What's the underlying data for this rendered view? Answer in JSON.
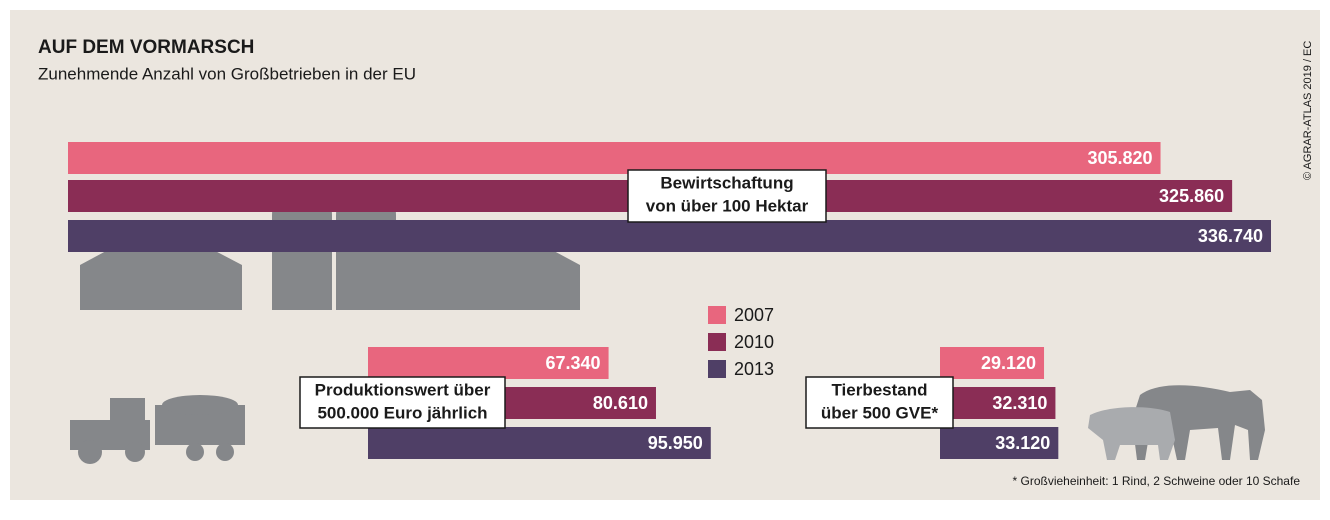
{
  "chart_data": {
    "type": "bar",
    "title": "AUF DEM VORMARSCH",
    "subtitle": "Zunehmende Anzahl von Großbetrieben in der EU",
    "categories": [
      [
        "Bewirtschaftung",
        "von über 100 Hektar"
      ],
      [
        "Produktionswert über",
        "500.000 Euro jährlich"
      ],
      [
        "Tierbestand",
        "über 500 GVE*"
      ]
    ],
    "series": [
      {
        "name": "2007",
        "color": "#e8667e",
        "values": [
          305820,
          67340,
          29120
        ],
        "value_labels": [
          "305.820",
          "67.340",
          "29.120"
        ]
      },
      {
        "name": "2010",
        "color": "#8a2d55",
        "values": [
          325860,
          80610,
          32310
        ],
        "value_labels": [
          "325.860",
          "80.610",
          "32.310"
        ]
      },
      {
        "name": "2013",
        "color": "#4f3f66",
        "values": [
          336740,
          95950,
          33120
        ],
        "value_labels": [
          "336.740",
          "95.950",
          "33.120"
        ]
      }
    ],
    "footnote": "* Großvieheinheit: 1 Rind, 2 Schweine oder 10 Schafe",
    "credit": "© AGRAR-ATLAS 2019 / EC"
  }
}
